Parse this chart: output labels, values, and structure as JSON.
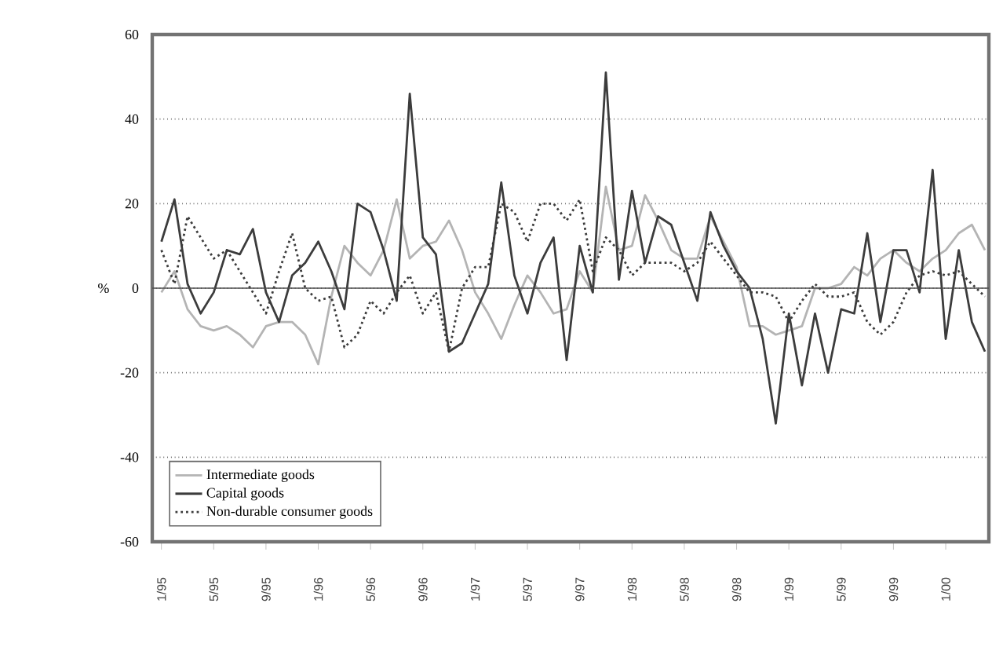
{
  "chart_data": {
    "type": "line",
    "ylabel": "%",
    "categories": [
      "1/95",
      null,
      null,
      null,
      "5/95",
      null,
      null,
      null,
      "9/95",
      null,
      null,
      null,
      "1/96",
      null,
      null,
      null,
      "5/96",
      null,
      null,
      null,
      "9/96",
      null,
      null,
      null,
      "1/97",
      null,
      null,
      null,
      "5/97",
      null,
      null,
      null,
      "9/97",
      null,
      null,
      null,
      "1/98",
      null,
      null,
      null,
      "5/98",
      null,
      null,
      null,
      "9/98",
      null,
      null,
      null,
      "1/99",
      null,
      null,
      null,
      "5/99",
      null,
      null,
      null,
      "9/99",
      null,
      null,
      null,
      "1/00",
      null,
      null,
      null
    ],
    "series": [
      {
        "name": "Intermediate goods",
        "color": "#b4b4b4",
        "line_style": "solid",
        "values": [
          -1,
          4,
          -5,
          -9,
          -10,
          -9,
          -11,
          -14,
          -9,
          -8,
          -8,
          -11,
          -18,
          -2,
          10,
          6,
          3,
          9,
          21,
          7,
          10,
          11,
          16,
          9,
          -1,
          -6,
          -12,
          -4,
          3,
          -1,
          -6,
          -5,
          4,
          -1,
          24,
          9,
          10,
          22,
          16,
          9,
          7,
          7,
          17,
          11,
          5,
          -9,
          -9,
          -11,
          -10,
          -9,
          0,
          0,
          1,
          5,
          3,
          7,
          9,
          6,
          4,
          7,
          9,
          13,
          15,
          9
        ]
      },
      {
        "name": "Capital goods",
        "color": "#3c3c3c",
        "line_style": "solid",
        "values": [
          11,
          21,
          1,
          -6,
          -1,
          9,
          8,
          14,
          -1,
          -8,
          3,
          6,
          11,
          4,
          -5,
          20,
          18,
          9,
          -3,
          46,
          12,
          8,
          -15,
          -13,
          -6,
          1,
          25,
          3,
          -6,
          6,
          12,
          -17,
          10,
          -1,
          51,
          2,
          23,
          6,
          17,
          15,
          6,
          -3,
          18,
          10,
          4,
          0,
          -12,
          -32,
          -6,
          -23,
          -6,
          -20,
          -5,
          -6,
          13,
          -8,
          9,
          9,
          -1,
          28,
          -12,
          9,
          -8,
          -15
        ]
      },
      {
        "name": "Non-durable consumer goods",
        "color": "#3c3c3c",
        "line_style": "dotted",
        "values": [
          9,
          1,
          17,
          12,
          7,
          9,
          4,
          -1,
          -6,
          4,
          13,
          0,
          -3,
          -2,
          -14,
          -11,
          -3,
          -6,
          -1,
          3,
          -6,
          -1,
          -15,
          0,
          5,
          5,
          20,
          18,
          11,
          20,
          20,
          16,
          21,
          4,
          12,
          9,
          3,
          6,
          6,
          6,
          4,
          6,
          11,
          7,
          3,
          -1,
          -1,
          -2,
          -8,
          -3,
          1,
          -2,
          -2,
          -1,
          -8,
          -11,
          -8,
          -1,
          3,
          4,
          3,
          4,
          1,
          -2
        ]
      }
    ],
    "ylim": [
      -60,
      60
    ],
    "yticks": [
      -60,
      -40,
      -20,
      0,
      20,
      40,
      60
    ],
    "grid": "y",
    "legend": "bottom left",
    "ref_lines": [
      {
        "axis": "y",
        "value": 0
      }
    ]
  }
}
